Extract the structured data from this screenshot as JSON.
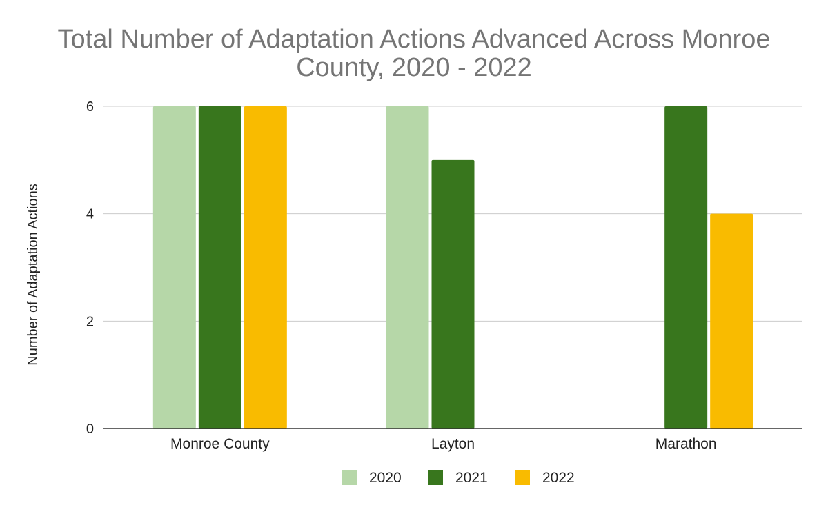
{
  "chart_data": {
    "type": "bar",
    "title": "Total Number of Adaptation Actions Advanced Across Monroe County, 2020 - 2022",
    "title_lines": [
      "Total Number of Adaptation Actions Advanced Across Monroe",
      "County, 2020 - 2022"
    ],
    "xlabel": "",
    "ylabel": "Number of Adaptation Actions",
    "categories": [
      "Monroe County",
      "Layton",
      "Marathon"
    ],
    "series": [
      {
        "name": "2020",
        "color": "#b6d7a8",
        "values": [
          6,
          6,
          null
        ]
      },
      {
        "name": "2021",
        "color": "#38761d",
        "values": [
          6,
          5,
          6
        ]
      },
      {
        "name": "2022",
        "color": "#f9bb00",
        "values": [
          6,
          null,
          4
        ]
      }
    ],
    "ylim": [
      0,
      6
    ],
    "yticks": [
      0,
      2,
      4,
      6
    ],
    "grid": true,
    "legend": "bottom"
  }
}
